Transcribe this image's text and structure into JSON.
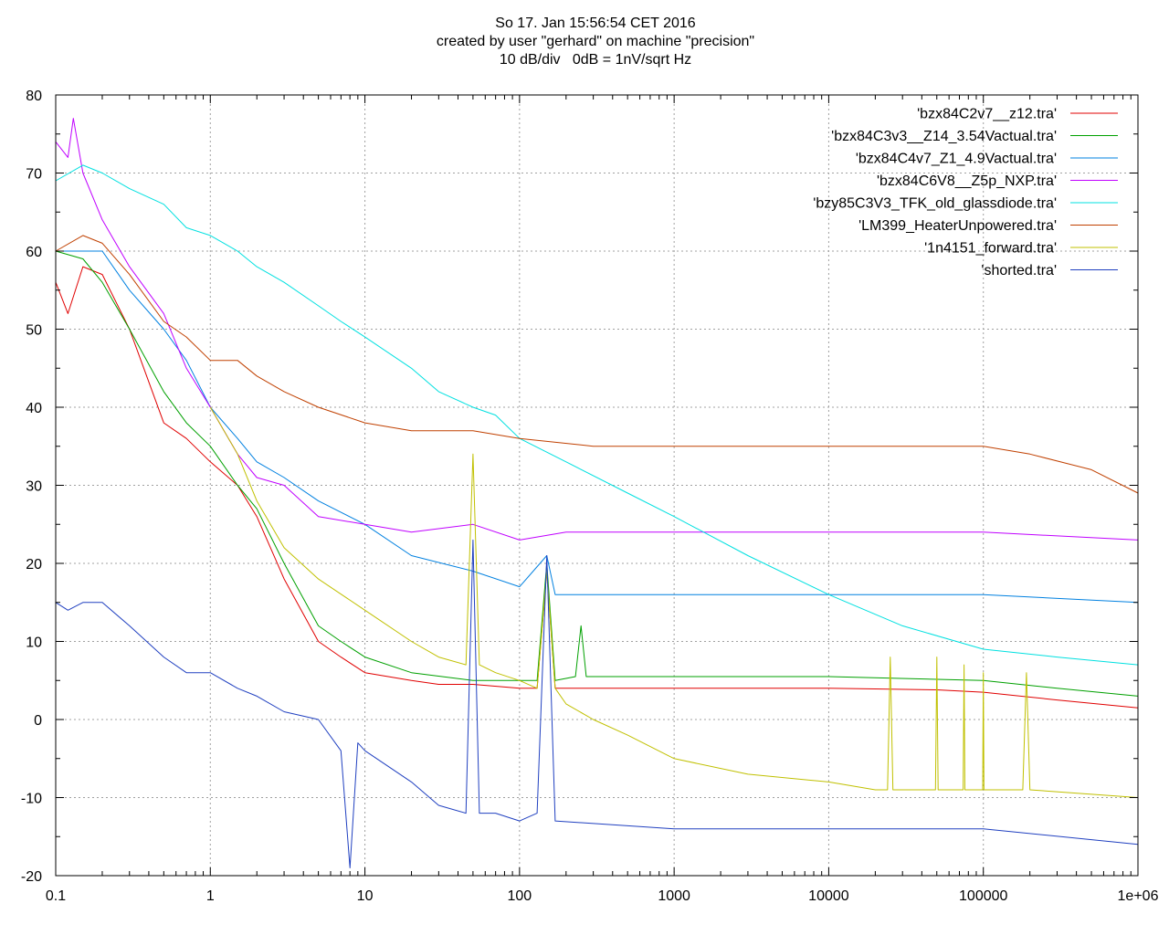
{
  "chart_data": {
    "type": "line",
    "title_lines": [
      "So 17. Jan 15:56:54 CET 2016",
      "created by user \"gerhard\" on machine \"precision\"",
      "10 dB/div   0dB = 1nV/sqrt Hz"
    ],
    "xscale": "log",
    "xlim": [
      0.1,
      1000000
    ],
    "ylim": [
      -20,
      80
    ],
    "x_ticks": [
      0.1,
      1,
      10,
      100,
      1000,
      10000,
      100000,
      1000000
    ],
    "x_tick_labels": [
      "0.1",
      "1",
      "10",
      "100",
      "1000",
      "10000",
      "100000",
      "1e+06"
    ],
    "y_ticks": [
      -20,
      -10,
      0,
      10,
      20,
      30,
      40,
      50,
      60,
      70,
      80
    ],
    "y_tick_labels": [
      "-20",
      "-10",
      "0",
      "10",
      "20",
      "30",
      "40",
      "50",
      "60",
      "70",
      "80"
    ],
    "grid": true,
    "legend_position": "top-right",
    "series": [
      {
        "name": "'bzx84C2v7__z12.tra'",
        "color": "#e00000",
        "points": [
          [
            0.1,
            56
          ],
          [
            0.12,
            52
          ],
          [
            0.15,
            58
          ],
          [
            0.2,
            57
          ],
          [
            0.3,
            50
          ],
          [
            0.5,
            38
          ],
          [
            0.7,
            36
          ],
          [
            1,
            33
          ],
          [
            1.5,
            30
          ],
          [
            2,
            26
          ],
          [
            3,
            18
          ],
          [
            5,
            10
          ],
          [
            7,
            8
          ],
          [
            10,
            6
          ],
          [
            20,
            5
          ],
          [
            30,
            4.5
          ],
          [
            50,
            4.5
          ],
          [
            100,
            4
          ],
          [
            130,
            4
          ],
          [
            150,
            19
          ],
          [
            170,
            4
          ],
          [
            250,
            4
          ],
          [
            300,
            4
          ],
          [
            1000,
            4
          ],
          [
            10000,
            4
          ],
          [
            50000,
            3.8
          ],
          [
            100000,
            3.5
          ],
          [
            300000,
            2.5
          ],
          [
            1000000,
            1.5
          ]
        ]
      },
      {
        "name": "'bzx84C3v3__Z14_3.54Vactual.tra'",
        "color": "#00a000",
        "points": [
          [
            0.1,
            60
          ],
          [
            0.15,
            59
          ],
          [
            0.2,
            56
          ],
          [
            0.3,
            50
          ],
          [
            0.5,
            42
          ],
          [
            0.7,
            38
          ],
          [
            1,
            35
          ],
          [
            1.5,
            30
          ],
          [
            2,
            27
          ],
          [
            3,
            20
          ],
          [
            5,
            12
          ],
          [
            7,
            10
          ],
          [
            10,
            8
          ],
          [
            20,
            6
          ],
          [
            50,
            5
          ],
          [
            100,
            5
          ],
          [
            130,
            5
          ],
          [
            150,
            20
          ],
          [
            170,
            5
          ],
          [
            230,
            5.5
          ],
          [
            250,
            12
          ],
          [
            270,
            5.5
          ],
          [
            1000,
            5.5
          ],
          [
            10000,
            5.5
          ],
          [
            100000,
            5
          ],
          [
            300000,
            4
          ],
          [
            1000000,
            3
          ]
        ]
      },
      {
        "name": "'bzx84C4v7_Z1_4.9Vactual.tra'",
        "color": "#0080e0",
        "points": [
          [
            0.1,
            60
          ],
          [
            0.2,
            60
          ],
          [
            0.3,
            55
          ],
          [
            0.5,
            50
          ],
          [
            0.7,
            46
          ],
          [
            1,
            40
          ],
          [
            1.5,
            36
          ],
          [
            2,
            33
          ],
          [
            3,
            31
          ],
          [
            5,
            28
          ],
          [
            10,
            25
          ],
          [
            20,
            21
          ],
          [
            50,
            19
          ],
          [
            100,
            17
          ],
          [
            150,
            21
          ],
          [
            170,
            16
          ],
          [
            1000,
            16
          ],
          [
            10000,
            16
          ],
          [
            100000,
            16
          ],
          [
            1000000,
            15
          ]
        ]
      },
      {
        "name": "'bzx84C6V8__Z5p_NXP.tra'",
        "color": "#c000ff",
        "points": [
          [
            0.1,
            74
          ],
          [
            0.12,
            72
          ],
          [
            0.13,
            77
          ],
          [
            0.15,
            70
          ],
          [
            0.2,
            64
          ],
          [
            0.3,
            58
          ],
          [
            0.5,
            52
          ],
          [
            0.7,
            45
          ],
          [
            1,
            40
          ],
          [
            1.5,
            34
          ],
          [
            2,
            31
          ],
          [
            3,
            30
          ],
          [
            5,
            26
          ],
          [
            10,
            25
          ],
          [
            20,
            24
          ],
          [
            50,
            25
          ],
          [
            100,
            23
          ],
          [
            200,
            24
          ],
          [
            1000,
            24
          ],
          [
            10000,
            24
          ],
          [
            100000,
            24
          ],
          [
            1000000,
            23
          ]
        ]
      },
      {
        "name": "'bzy85C3V3_TFK_old_glassdiode.tra'",
        "color": "#00e0e0",
        "points": [
          [
            0.1,
            69
          ],
          [
            0.15,
            71
          ],
          [
            0.2,
            70
          ],
          [
            0.3,
            68
          ],
          [
            0.5,
            66
          ],
          [
            0.7,
            63
          ],
          [
            1,
            62
          ],
          [
            1.5,
            60
          ],
          [
            2,
            58
          ],
          [
            3,
            56
          ],
          [
            5,
            53
          ],
          [
            7,
            51
          ],
          [
            10,
            49
          ],
          [
            20,
            45
          ],
          [
            30,
            42
          ],
          [
            50,
            40
          ],
          [
            70,
            39
          ],
          [
            100,
            36
          ],
          [
            200,
            33
          ],
          [
            500,
            29
          ],
          [
            1000,
            26
          ],
          [
            3000,
            21
          ],
          [
            10000,
            16
          ],
          [
            30000,
            12
          ],
          [
            100000,
            9
          ],
          [
            300000,
            8
          ],
          [
            1000000,
            7
          ]
        ]
      },
      {
        "name": "'LM399_HeaterUnpowered.tra'",
        "color": "#c04000",
        "points": [
          [
            0.1,
            60
          ],
          [
            0.15,
            62
          ],
          [
            0.2,
            61
          ],
          [
            0.3,
            57
          ],
          [
            0.5,
            51
          ],
          [
            0.7,
            49
          ],
          [
            1,
            46
          ],
          [
            1.5,
            46
          ],
          [
            2,
            44
          ],
          [
            3,
            42
          ],
          [
            5,
            40
          ],
          [
            10,
            38
          ],
          [
            20,
            37
          ],
          [
            50,
            37
          ],
          [
            100,
            36
          ],
          [
            300,
            35
          ],
          [
            1000,
            35
          ],
          [
            10000,
            35
          ],
          [
            100000,
            35
          ],
          [
            200000,
            34
          ],
          [
            500000,
            32
          ],
          [
            1000000,
            29
          ]
        ]
      },
      {
        "name": "'1n4151_forward.tra'",
        "color": "#c0c000",
        "points": [
          [
            1,
            40
          ],
          [
            1.5,
            34
          ],
          [
            2,
            28
          ],
          [
            3,
            22
          ],
          [
            5,
            18
          ],
          [
            10,
            14
          ],
          [
            20,
            10
          ],
          [
            30,
            8
          ],
          [
            45,
            7
          ],
          [
            50,
            34
          ],
          [
            55,
            7
          ],
          [
            70,
            6
          ],
          [
            100,
            5
          ],
          [
            130,
            4
          ],
          [
            150,
            19
          ],
          [
            170,
            4
          ],
          [
            200,
            2
          ],
          [
            300,
            0
          ],
          [
            500,
            -2
          ],
          [
            1000,
            -5
          ],
          [
            3000,
            -7
          ],
          [
            10000,
            -8
          ],
          [
            20000,
            -9
          ],
          [
            24000,
            -9
          ],
          [
            25000,
            8
          ],
          [
            26000,
            -9
          ],
          [
            49000,
            -9
          ],
          [
            50000,
            8
          ],
          [
            51000,
            -9
          ],
          [
            74000,
            -9
          ],
          [
            75000,
            7
          ],
          [
            76000,
            -9
          ],
          [
            99000,
            -9
          ],
          [
            100000,
            6
          ],
          [
            101000,
            -9
          ],
          [
            180000,
            -9
          ],
          [
            190000,
            6
          ],
          [
            200000,
            -9
          ],
          [
            1000000,
            -10
          ]
        ]
      },
      {
        "name": "'shorted.tra'",
        "color": "#2040c0",
        "points": [
          [
            0.1,
            15
          ],
          [
            0.12,
            14
          ],
          [
            0.15,
            15
          ],
          [
            0.2,
            15
          ],
          [
            0.3,
            12
          ],
          [
            0.5,
            8
          ],
          [
            0.7,
            6
          ],
          [
            1,
            6
          ],
          [
            1.5,
            4
          ],
          [
            2,
            3
          ],
          [
            3,
            1
          ],
          [
            5,
            0
          ],
          [
            7,
            -4
          ],
          [
            8,
            -19
          ],
          [
            9,
            -3
          ],
          [
            10,
            -4
          ],
          [
            20,
            -8
          ],
          [
            30,
            -11
          ],
          [
            45,
            -12
          ],
          [
            50,
            23
          ],
          [
            55,
            -12
          ],
          [
            70,
            -12
          ],
          [
            100,
            -13
          ],
          [
            130,
            -12
          ],
          [
            150,
            21
          ],
          [
            170,
            -13
          ],
          [
            1000,
            -14
          ],
          [
            10000,
            -14
          ],
          [
            100000,
            -14
          ],
          [
            1000000,
            -16
          ]
        ]
      }
    ]
  }
}
